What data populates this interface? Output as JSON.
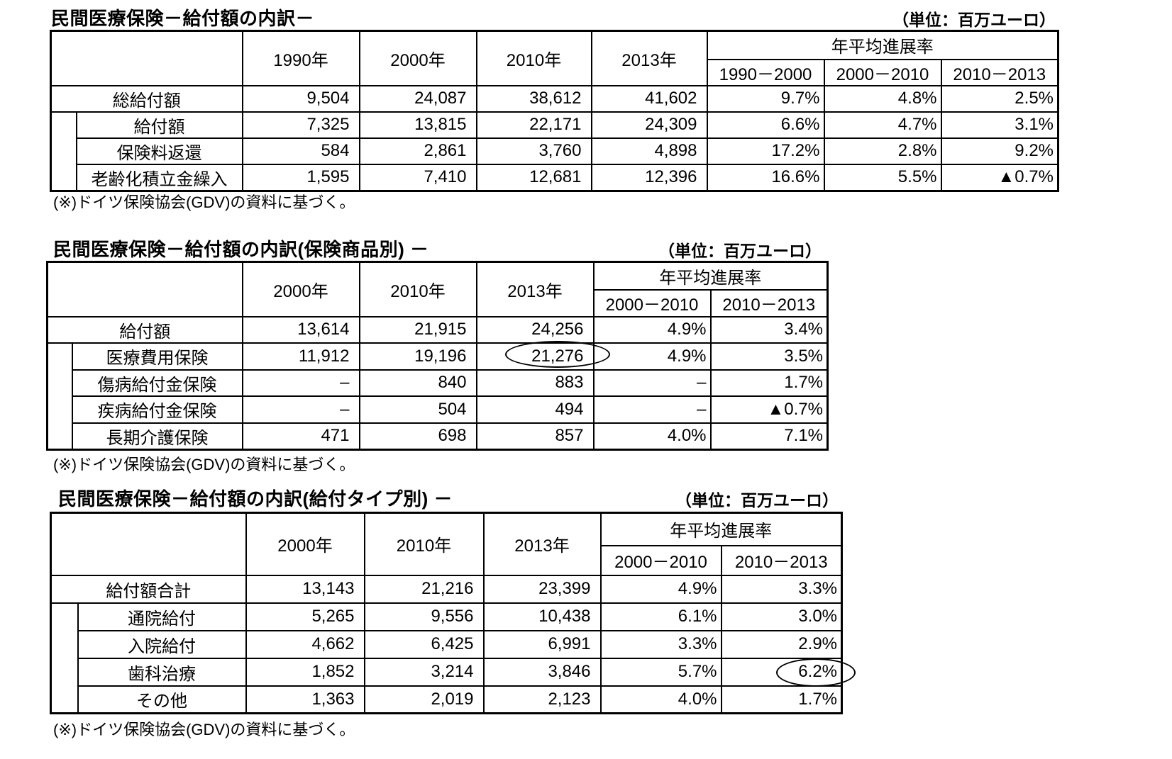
{
  "unit_label": "（単位：百万ユーロ）",
  "footnote": "(※)ドイツ保険協会(GDV)の資料に基づく。",
  "header_labels": {
    "rate_header": "年平均進展率"
  },
  "tables": [
    {
      "title": "民間医療保険－給付額の内訳－",
      "year_columns": [
        "1990年",
        "2000年",
        "2010年",
        "2013年"
      ],
      "rate_columns": [
        "1990－2000",
        "2000－2010",
        "2010－2013"
      ],
      "rows": [
        {
          "label": "総給付額",
          "indent": false,
          "values": [
            "9,504",
            "24,087",
            "38,612",
            "41,602"
          ],
          "rates": [
            "9.7%",
            "4.8%",
            "2.5%"
          ]
        },
        {
          "label": "給付額",
          "indent": true,
          "values": [
            "7,325",
            "13,815",
            "22,171",
            "24,309"
          ],
          "rates": [
            "6.6%",
            "4.7%",
            "3.1%"
          ]
        },
        {
          "label": "保険料返還",
          "indent": true,
          "values": [
            "584",
            "2,861",
            "3,760",
            "4,898"
          ],
          "rates": [
            "17.2%",
            "2.8%",
            "9.2%"
          ]
        },
        {
          "label": "老齢化積立金繰入",
          "indent": true,
          "values": [
            "1,595",
            "7,410",
            "12,681",
            "12,396"
          ],
          "rates": [
            "16.6%",
            "5.5%",
            "▲0.7%"
          ]
        }
      ]
    },
    {
      "title": "民間医療保険－給付額の内訳(保険商品別) －",
      "year_columns": [
        "2000年",
        "2010年",
        "2013年"
      ],
      "rate_columns": [
        "2000－2010",
        "2010－2013"
      ],
      "rows": [
        {
          "label": "給付額",
          "indent": false,
          "values": [
            "13,614",
            "21,915",
            "24,256"
          ],
          "rates": [
            "4.9%",
            "3.4%"
          ]
        },
        {
          "label": "医療費用保険",
          "indent": true,
          "values": [
            "11,912",
            "19,196",
            "21,276"
          ],
          "rates": [
            "4.9%",
            "3.5%"
          ]
        },
        {
          "label": "傷病給付金保険",
          "indent": true,
          "values": [
            "–",
            "840",
            "883"
          ],
          "rates": [
            "–",
            "1.7%"
          ]
        },
        {
          "label": "疾病給付金保険",
          "indent": true,
          "values": [
            "–",
            "504",
            "494"
          ],
          "rates": [
            "–",
            "▲0.7%"
          ]
        },
        {
          "label": "長期介護保険",
          "indent": true,
          "values": [
            "471",
            "698",
            "857"
          ],
          "rates": [
            "4.0%",
            "7.1%"
          ]
        }
      ]
    },
    {
      "title": "民間医療保険－給付額の内訳(給付タイプ別) －",
      "year_columns": [
        "2000年",
        "2010年",
        "2013年"
      ],
      "rate_columns": [
        "2000－2010",
        "2010－2013"
      ],
      "rows": [
        {
          "label": "給付額合計",
          "indent": false,
          "values": [
            "13,143",
            "21,216",
            "23,399"
          ],
          "rates": [
            "4.9%",
            "3.3%"
          ]
        },
        {
          "label": "通院給付",
          "indent": true,
          "values": [
            "5,265",
            "9,556",
            "10,438"
          ],
          "rates": [
            "6.1%",
            "3.0%"
          ]
        },
        {
          "label": "入院給付",
          "indent": true,
          "values": [
            "4,662",
            "6,425",
            "6,991"
          ],
          "rates": [
            "3.3%",
            "2.9%"
          ]
        },
        {
          "label": "歯科治療",
          "indent": true,
          "values": [
            "1,852",
            "3,214",
            "3,846"
          ],
          "rates": [
            "5.7%",
            "6.2%"
          ]
        },
        {
          "label": "その他",
          "indent": true,
          "values": [
            "1,363",
            "2,019",
            "2,123"
          ],
          "rates": [
            "4.0%",
            "1.7%"
          ]
        }
      ]
    }
  ],
  "annotations": [
    {
      "shape": "ellipse",
      "circled_value": "21,276",
      "table": 2,
      "row": "医療費用保険",
      "column": "2013年"
    },
    {
      "shape": "ellipse",
      "circled_value": "6.2%",
      "table": 3,
      "row": "歯科治療",
      "column": "2010－2013"
    }
  ]
}
